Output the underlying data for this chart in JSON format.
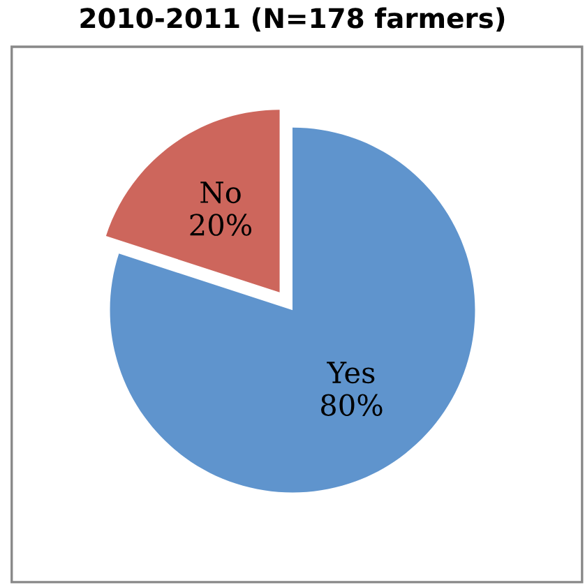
{
  "chart_data": {
    "type": "pie",
    "title": "2010-2011 (N=178 farmers)",
    "categories": [
      "Yes",
      "No"
    ],
    "values": [
      80,
      20
    ],
    "value_labels": [
      "80%",
      "20%"
    ],
    "colors": [
      "#5f94cd",
      "#cd665c"
    ],
    "legend": false
  }
}
